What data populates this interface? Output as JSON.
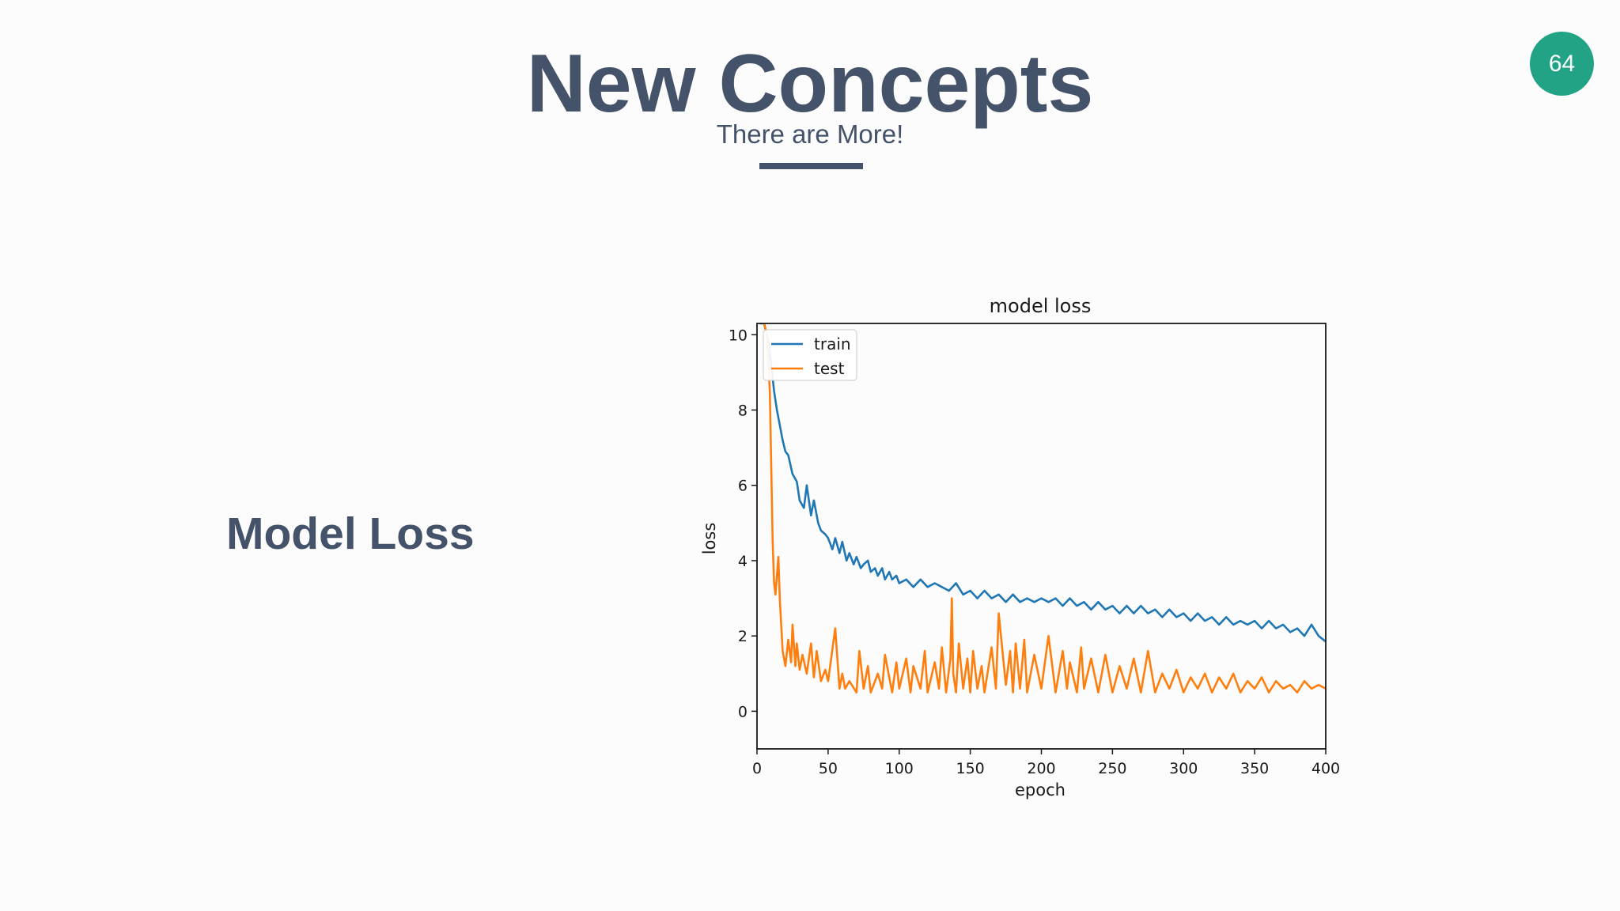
{
  "slide": {
    "title": "New Concepts",
    "subtitle": "There are More!",
    "page_number": "64",
    "section_label": "Model Loss"
  },
  "colors": {
    "heading": "#445369",
    "badge": "#22a385",
    "train": "#1f77b4",
    "test": "#ff7f0e"
  },
  "chart_data": {
    "type": "line",
    "title": "model loss",
    "xlabel": "epoch",
    "ylabel": "loss",
    "xlim": [
      0,
      400
    ],
    "ylim": [
      -1,
      10.3
    ],
    "xticks": [
      0,
      50,
      100,
      150,
      200,
      250,
      300,
      350,
      400
    ],
    "yticks": [
      0,
      2,
      4,
      6,
      8,
      10
    ],
    "grid": false,
    "legend_position": "upper-left",
    "series": [
      {
        "name": "train",
        "color": "#1f77b4",
        "x": [
          2,
          5,
          8,
          10,
          12,
          14,
          16,
          18,
          20,
          22,
          25,
          28,
          30,
          33,
          35,
          38,
          40,
          43,
          45,
          48,
          50,
          53,
          55,
          58,
          60,
          63,
          65,
          68,
          70,
          73,
          75,
          78,
          80,
          83,
          85,
          88,
          90,
          93,
          95,
          98,
          100,
          105,
          110,
          115,
          120,
          125,
          130,
          135,
          140,
          145,
          150,
          155,
          160,
          165,
          170,
          175,
          180,
          185,
          190,
          195,
          200,
          205,
          210,
          215,
          220,
          225,
          230,
          235,
          240,
          245,
          250,
          255,
          260,
          265,
          270,
          275,
          280,
          285,
          290,
          295,
          300,
          305,
          310,
          315,
          320,
          325,
          330,
          335,
          340,
          345,
          350,
          355,
          360,
          365,
          370,
          375,
          380,
          385,
          390,
          395,
          400
        ],
        "values": [
          10.3,
          10.3,
          9.8,
          9.2,
          8.5,
          8.0,
          7.6,
          7.2,
          6.9,
          6.8,
          6.3,
          6.1,
          5.6,
          5.4,
          6.0,
          5.2,
          5.6,
          5.0,
          4.8,
          4.7,
          4.6,
          4.3,
          4.6,
          4.2,
          4.5,
          4.0,
          4.2,
          3.9,
          4.1,
          3.8,
          3.9,
          4.0,
          3.7,
          3.8,
          3.6,
          3.8,
          3.5,
          3.7,
          3.5,
          3.6,
          3.4,
          3.5,
          3.3,
          3.5,
          3.3,
          3.4,
          3.3,
          3.2,
          3.4,
          3.1,
          3.2,
          3.0,
          3.2,
          3.0,
          3.1,
          2.9,
          3.1,
          2.9,
          3.0,
          2.9,
          3.0,
          2.9,
          3.0,
          2.8,
          3.0,
          2.8,
          2.9,
          2.7,
          2.9,
          2.7,
          2.8,
          2.6,
          2.8,
          2.6,
          2.8,
          2.6,
          2.7,
          2.5,
          2.7,
          2.5,
          2.6,
          2.4,
          2.6,
          2.4,
          2.5,
          2.3,
          2.5,
          2.3,
          2.4,
          2.3,
          2.4,
          2.2,
          2.4,
          2.2,
          2.3,
          2.1,
          2.2,
          2.0,
          2.3,
          2.0,
          1.85
        ]
      },
      {
        "name": "test",
        "color": "#ff7f0e",
        "x": [
          5,
          7,
          9,
          10,
          11,
          12,
          13,
          14,
          15,
          16,
          18,
          20,
          22,
          24,
          25,
          27,
          28,
          30,
          32,
          35,
          38,
          40,
          42,
          45,
          48,
          50,
          55,
          58,
          60,
          62,
          65,
          70,
          72,
          75,
          78,
          80,
          85,
          88,
          90,
          95,
          98,
          100,
          105,
          108,
          110,
          115,
          118,
          120,
          125,
          128,
          130,
          133,
          136,
          137,
          138,
          140,
          142,
          145,
          148,
          150,
          152,
          155,
          158,
          160,
          165,
          168,
          170,
          175,
          178,
          180,
          182,
          185,
          188,
          190,
          195,
          200,
          205,
          210,
          215,
          218,
          220,
          225,
          228,
          230,
          235,
          240,
          245,
          250,
          255,
          260,
          265,
          270,
          275,
          280,
          285,
          290,
          295,
          300,
          305,
          310,
          315,
          320,
          325,
          330,
          335,
          340,
          345,
          350,
          355,
          360,
          365,
          370,
          375,
          380,
          385,
          390,
          395,
          400
        ],
        "values": [
          10.3,
          10.0,
          8.5,
          6.5,
          4.5,
          3.4,
          3.1,
          3.6,
          4.1,
          3.0,
          1.6,
          1.2,
          1.9,
          1.3,
          2.3,
          1.2,
          1.8,
          1.1,
          1.5,
          1.0,
          1.8,
          0.9,
          1.6,
          0.8,
          1.1,
          0.8,
          2.2,
          0.6,
          1.0,
          0.6,
          0.8,
          0.5,
          1.6,
          0.6,
          1.2,
          0.5,
          1.0,
          0.6,
          1.5,
          0.5,
          1.3,
          0.6,
          1.4,
          0.5,
          1.2,
          0.6,
          1.6,
          0.5,
          1.3,
          0.6,
          1.7,
          0.5,
          1.4,
          3.0,
          1.0,
          0.5,
          1.8,
          0.6,
          1.4,
          0.5,
          1.6,
          0.6,
          1.2,
          0.5,
          1.7,
          0.6,
          2.6,
          0.7,
          1.6,
          0.5,
          1.8,
          0.6,
          1.9,
          0.5,
          1.5,
          0.6,
          2.0,
          0.5,
          1.6,
          0.6,
          1.3,
          0.5,
          1.7,
          0.6,
          1.4,
          0.5,
          1.5,
          0.5,
          1.2,
          0.6,
          1.4,
          0.5,
          1.6,
          0.5,
          1.0,
          0.6,
          1.1,
          0.5,
          0.9,
          0.6,
          1.0,
          0.5,
          0.9,
          0.6,
          1.0,
          0.5,
          0.8,
          0.6,
          0.9,
          0.5,
          0.8,
          0.6,
          0.7,
          0.5,
          0.8,
          0.6,
          0.7,
          0.6
        ]
      }
    ]
  }
}
